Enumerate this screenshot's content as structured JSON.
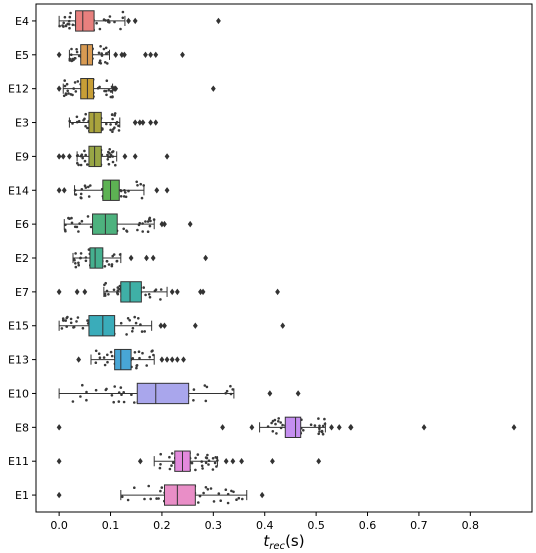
{
  "chart_data": {
    "type": "boxplot-swarm",
    "orientation": "horizontal",
    "xlabel": {
      "main": "t",
      "sub": "rec",
      "unit": "(s)"
    },
    "xlim": [
      -0.045,
      0.92
    ],
    "xticks": [
      0.0,
      0.1,
      0.2,
      0.3,
      0.4,
      0.5,
      0.6,
      0.7,
      0.8
    ],
    "xtick_labels": [
      "0.0",
      "0.1",
      "0.2",
      "0.3",
      "0.4",
      "0.5",
      "0.6",
      "0.7",
      "0.8"
    ],
    "grid": false,
    "legend": "none",
    "series": [
      {
        "name": "E4",
        "color": "#e8807e",
        "whisker_low": 0.0,
        "q1": 0.032,
        "median": 0.046,
        "q3": 0.068,
        "whisker_high": 0.128,
        "outliers": [
          0.135,
          0.148,
          0.31
        ]
      },
      {
        "name": "E5",
        "color": "#d89a52",
        "whisker_low": 0.02,
        "q1": 0.042,
        "median": 0.055,
        "q3": 0.065,
        "whisker_high": 0.098,
        "outliers": [
          0.0,
          0.11,
          0.122,
          0.127,
          0.168,
          0.178,
          0.188,
          0.24
        ]
      },
      {
        "name": "E12",
        "color": "#c79e36",
        "whisker_low": 0.008,
        "q1": 0.042,
        "median": 0.055,
        "q3": 0.067,
        "whisker_high": 0.104,
        "outliers": [
          0.0,
          0.107,
          0.11,
          0.3
        ]
      },
      {
        "name": "E3",
        "color": "#a9a33c",
        "whisker_low": 0.02,
        "q1": 0.058,
        "median": 0.068,
        "q3": 0.082,
        "whisker_high": 0.118,
        "outliers": [
          0.148,
          0.157,
          0.163,
          0.178,
          0.188
        ]
      },
      {
        "name": "E9",
        "color": "#98a645",
        "whisker_low": 0.035,
        "q1": 0.058,
        "median": 0.069,
        "q3": 0.082,
        "whisker_high": 0.112,
        "outliers": [
          0.0,
          0.008,
          0.02,
          0.128,
          0.148,
          0.21
        ]
      },
      {
        "name": "E14",
        "color": "#5db253",
        "whisker_low": 0.03,
        "q1": 0.085,
        "median": 0.1,
        "q3": 0.117,
        "whisker_high": 0.165,
        "outliers": [
          0.0,
          0.01,
          0.19,
          0.21
        ]
      },
      {
        "name": "E6",
        "color": "#4db27e",
        "whisker_low": 0.01,
        "q1": 0.065,
        "median": 0.09,
        "q3": 0.113,
        "whisker_high": 0.185,
        "outliers": [
          0.2,
          0.205,
          0.255
        ]
      },
      {
        "name": "E2",
        "color": "#45b08f",
        "whisker_low": 0.027,
        "q1": 0.06,
        "median": 0.07,
        "q3": 0.085,
        "whisker_high": 0.12,
        "outliers": [
          0.14,
          0.17,
          0.183,
          0.285
        ]
      },
      {
        "name": "E7",
        "color": "#3fb0a6",
        "whisker_low": 0.087,
        "q1": 0.12,
        "median": 0.138,
        "q3": 0.16,
        "whisker_high": 0.21,
        "outliers": [
          0.0,
          0.035,
          0.05,
          0.22,
          0.23,
          0.275,
          0.28,
          0.425
        ]
      },
      {
        "name": "E15",
        "color": "#3aacba",
        "whisker_low": 0.0,
        "q1": 0.058,
        "median": 0.085,
        "q3": 0.108,
        "whisker_high": 0.18,
        "outliers": [
          0.198,
          0.205,
          0.265,
          0.435
        ]
      },
      {
        "name": "E13",
        "color": "#48a6d6",
        "whisker_low": 0.062,
        "q1": 0.108,
        "median": 0.12,
        "q3": 0.14,
        "whisker_high": 0.185,
        "outliers": [
          0.038,
          0.2,
          0.21,
          0.22,
          0.23,
          0.242
        ]
      },
      {
        "name": "E10",
        "color": "#a9a6ec",
        "whisker_low": 0.0,
        "q1": 0.152,
        "median": 0.188,
        "q3": 0.252,
        "whisker_high": 0.34,
        "outliers": [
          0.41,
          0.465
        ]
      },
      {
        "name": "E8",
        "color": "#c58ff0",
        "whisker_low": 0.39,
        "q1": 0.44,
        "median": 0.46,
        "q3": 0.47,
        "whisker_high": 0.518,
        "outliers": [
          0.0,
          0.318,
          0.375,
          0.53,
          0.545,
          0.567,
          0.568,
          0.71,
          0.885
        ]
      },
      {
        "name": "E11",
        "color": "#e389dc",
        "whisker_low": 0.185,
        "q1": 0.225,
        "median": 0.24,
        "q3": 0.255,
        "whisker_high": 0.308,
        "outliers": [
          0.0,
          0.158,
          0.325,
          0.338,
          0.355,
          0.415,
          0.505
        ]
      },
      {
        "name": "E1",
        "color": "#e98ec7",
        "whisker_low": 0.12,
        "q1": 0.205,
        "median": 0.23,
        "q3": 0.265,
        "whisker_high": 0.365,
        "outliers": [
          0.0,
          0.395
        ]
      }
    ]
  }
}
